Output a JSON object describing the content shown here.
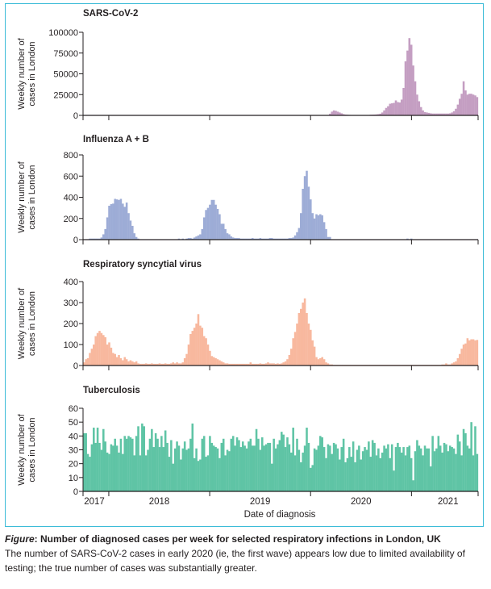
{
  "chart_data": [
    {
      "type": "bar",
      "title": "SARS-CoV-2",
      "ylabel": [
        "Weekly number of",
        "cases in London"
      ],
      "ylim": [
        0,
        100000
      ],
      "yticks": [
        "0",
        "25000",
        "50000",
        "75000",
        "100000"
      ],
      "ytick_values": [
        0,
        25000,
        50000,
        75000,
        100000
      ],
      "color": "#c49ec2",
      "values": [
        0,
        0,
        0,
        0,
        0,
        0,
        0,
        0,
        0,
        0,
        0,
        0,
        0,
        0,
        0,
        0,
        0,
        0,
        0,
        0,
        0,
        0,
        0,
        0,
        0,
        0,
        0,
        0,
        0,
        0,
        0,
        0,
        0,
        0,
        0,
        0,
        0,
        0,
        0,
        0,
        0,
        0,
        0,
        0,
        0,
        0,
        0,
        0,
        0,
        0,
        0,
        0,
        0,
        0,
        0,
        0,
        0,
        0,
        0,
        0,
        0,
        0,
        0,
        0,
        0,
        0,
        0,
        0,
        0,
        0,
        0,
        0,
        0,
        0,
        0,
        0,
        0,
        0,
        0,
        0,
        0,
        0,
        0,
        0,
        0,
        0,
        0,
        0,
        0,
        0,
        0,
        0,
        0,
        0,
        0,
        0,
        0,
        0,
        0,
        0,
        0,
        0,
        0,
        0,
        0,
        0,
        0,
        0,
        0,
        0,
        0,
        0,
        0,
        0,
        0,
        0,
        0,
        0,
        0,
        0,
        0,
        0,
        0,
        0,
        0,
        0,
        500,
        2000,
        4500,
        6000,
        5500,
        4500,
        3500,
        2500,
        1500,
        1000,
        800,
        600,
        200,
        200,
        200,
        200,
        200,
        200,
        200,
        200,
        200,
        200,
        800,
        900,
        1000,
        1200,
        1500,
        2000,
        3500,
        6000,
        9000,
        11000,
        14000,
        14500,
        15000,
        18000,
        16000,
        15500,
        19000,
        33000,
        65000,
        78000,
        93000,
        85000,
        60000,
        41000,
        25000,
        17000,
        10000,
        6000,
        4000,
        3500,
        3000,
        2500,
        2200,
        2200,
        2200,
        2200,
        2200,
        2200,
        2200,
        2200,
        2200,
        2500,
        3500,
        5000,
        8000,
        13000,
        20000,
        26000,
        41000,
        30000,
        25000,
        26000,
        26000,
        25000,
        24000,
        22000
      ]
    },
    {
      "type": "bar",
      "title": "Influenza A + B",
      "ylabel": [
        "Weekly number of",
        "cases in London"
      ],
      "ylim": [
        0,
        800
      ],
      "yticks": [
        "0",
        "200",
        "400",
        "600",
        "800"
      ],
      "ytick_values": [
        0,
        200,
        400,
        600,
        800
      ],
      "color": "#9dacd6",
      "values": [
        0,
        0,
        0,
        10,
        10,
        10,
        10,
        10,
        10,
        20,
        50,
        100,
        210,
        320,
        335,
        340,
        385,
        380,
        375,
        385,
        340,
        310,
        350,
        250,
        180,
        130,
        60,
        25,
        10,
        0,
        0,
        0,
        0,
        0,
        0,
        0,
        0,
        0,
        0,
        0,
        0,
        0,
        0,
        0,
        0,
        0,
        0,
        0,
        0,
        10,
        0,
        10,
        0,
        10,
        15,
        15,
        10,
        20,
        30,
        40,
        50,
        100,
        210,
        280,
        300,
        330,
        375,
        375,
        330,
        290,
        240,
        150,
        150,
        100,
        60,
        50,
        30,
        20,
        15,
        15,
        15,
        10,
        10,
        10,
        10,
        10,
        10,
        15,
        10,
        10,
        10,
        15,
        10,
        10,
        10,
        10,
        15,
        15,
        10,
        10,
        10,
        10,
        10,
        10,
        10,
        10,
        15,
        15,
        20,
        40,
        70,
        110,
        250,
        480,
        600,
        650,
        500,
        380,
        250,
        200,
        240,
        230,
        240,
        230,
        165,
        100,
        25,
        25,
        0,
        0,
        0,
        0,
        0,
        0,
        0,
        0,
        0,
        0,
        0,
        0,
        0,
        0,
        0,
        0,
        0,
        0,
        0,
        0,
        0,
        0,
        0,
        0,
        0,
        0,
        0,
        0,
        0,
        0,
        0,
        0,
        0,
        0,
        0,
        0,
        0,
        0,
        0,
        10,
        0,
        10,
        0,
        0,
        0,
        0,
        0,
        0,
        0,
        0,
        0,
        0,
        0,
        0,
        0,
        0,
        0,
        0,
        0,
        0,
        0,
        0,
        0,
        0,
        0,
        0,
        0,
        0,
        0,
        0,
        0,
        0,
        0,
        0,
        0,
        0
      ]
    },
    {
      "type": "bar",
      "title": "Respiratory syncytial virus",
      "ylabel": [
        "Weekly number of",
        "cases in London"
      ],
      "ylim": [
        0,
        400
      ],
      "yticks": [
        "0",
        "100",
        "200",
        "300",
        "400"
      ],
      "ytick_values": [
        0,
        100,
        200,
        300,
        400
      ],
      "color": "#f8b89e",
      "values": [
        15,
        30,
        35,
        60,
        80,
        100,
        140,
        155,
        165,
        155,
        145,
        135,
        100,
        110,
        85,
        60,
        55,
        40,
        50,
        35,
        25,
        40,
        30,
        20,
        25,
        20,
        15,
        20,
        10,
        8,
        8,
        8,
        10,
        8,
        8,
        10,
        8,
        8,
        8,
        10,
        8,
        8,
        10,
        8,
        8,
        10,
        15,
        10,
        15,
        10,
        10,
        15,
        35,
        55,
        100,
        150,
        165,
        180,
        200,
        245,
        190,
        180,
        140,
        130,
        100,
        70,
        45,
        40,
        35,
        30,
        25,
        20,
        15,
        10,
        10,
        8,
        8,
        8,
        8,
        8,
        8,
        8,
        8,
        8,
        8,
        8,
        15,
        8,
        8,
        8,
        8,
        10,
        8,
        8,
        10,
        15,
        10,
        10,
        10,
        8,
        10,
        8,
        10,
        15,
        20,
        30,
        50,
        80,
        130,
        160,
        200,
        250,
        270,
        300,
        320,
        250,
        200,
        170,
        120,
        90,
        40,
        30,
        35,
        40,
        30,
        15,
        10,
        5,
        5,
        3,
        3,
        3,
        3,
        3,
        3,
        3,
        3,
        3,
        3,
        3,
        3,
        3,
        3,
        3,
        3,
        3,
        3,
        3,
        3,
        3,
        3,
        3,
        3,
        3,
        3,
        3,
        3,
        3,
        3,
        3,
        3,
        3,
        3,
        3,
        3,
        3,
        3,
        3,
        3,
        3,
        3,
        3,
        3,
        3,
        3,
        3,
        3,
        3,
        3,
        3,
        3,
        3,
        3,
        3,
        3,
        5,
        5,
        10,
        5,
        5,
        10,
        15,
        20,
        35,
        55,
        80,
        100,
        105,
        130,
        120,
        125,
        125,
        120,
        122
      ]
    },
    {
      "type": "bar",
      "title": "Tuberculosis",
      "ylabel": [
        "Weekly number of",
        "cases in London"
      ],
      "ylim": [
        0,
        60
      ],
      "yticks": [
        "0",
        "10",
        "20",
        "30",
        "40",
        "50",
        "60"
      ],
      "ytick_values": [
        0,
        10,
        20,
        30,
        40,
        50,
        60
      ],
      "color": "#5fc4a5",
      "values": [
        42,
        42,
        27,
        25,
        34,
        46,
        35,
        46,
        35,
        30,
        45,
        36,
        28,
        27,
        34,
        33,
        38,
        33,
        28,
        38,
        27,
        40,
        38,
        40,
        39,
        38,
        26,
        40,
        47,
        26,
        49,
        47,
        26,
        30,
        38,
        45,
        32,
        42,
        38,
        32,
        40,
        32,
        44,
        35,
        25,
        37,
        20,
        31,
        36,
        33,
        23,
        31,
        36,
        30,
        31,
        38,
        49,
        24,
        31,
        22,
        23,
        38,
        40,
        25,
        26,
        40,
        35,
        33,
        32,
        31,
        24,
        35,
        38,
        26,
        30,
        29,
        38,
        40,
        33,
        39,
        37,
        32,
        36,
        33,
        31,
        36,
        38,
        33,
        33,
        45,
        38,
        30,
        39,
        33,
        34,
        35,
        35,
        20,
        38,
        31,
        34,
        37,
        43,
        41,
        32,
        39,
        34,
        28,
        46,
        26,
        38,
        30,
        21,
        28,
        33,
        46,
        35,
        17,
        19,
        31,
        30,
        33,
        40,
        39,
        32,
        24,
        34,
        33,
        27,
        35,
        34,
        31,
        23,
        32,
        38,
        21,
        24,
        32,
        25,
        36,
        21,
        30,
        33,
        23,
        29,
        32,
        30,
        36,
        25,
        37,
        35,
        26,
        31,
        24,
        28,
        33,
        31,
        34,
        24,
        34,
        15,
        32,
        35,
        32,
        28,
        32,
        26,
        32,
        33,
        24,
        8,
        29,
        37,
        33,
        31,
        26,
        33,
        31,
        31,
        18,
        40,
        29,
        31,
        40,
        33,
        28,
        35,
        34,
        29,
        33,
        32,
        31,
        27,
        41,
        36,
        26,
        45,
        42,
        33,
        31,
        50,
        26,
        47,
        27
      ]
    }
  ],
  "x_axis": {
    "label": "Date of diagnosis",
    "years": [
      "2017",
      "2018",
      "2019",
      "2020",
      "2021"
    ],
    "unit": "week",
    "year_boundaries_week_index": [
      13.3,
      65.4,
      117.5,
      169.6
    ]
  },
  "caption": {
    "lead": "Figure",
    "title": ": Number of diagnosed cases per week for selected respiratory infections in London, UK",
    "body": "The number of SARS-CoV-2 cases in early 2020 (ie, the first wave) appears low due to limited availability of testing; the true number of cases was substantially greater."
  },
  "colors": {
    "frame": "#3cbcd8",
    "axis": "#231f20"
  }
}
